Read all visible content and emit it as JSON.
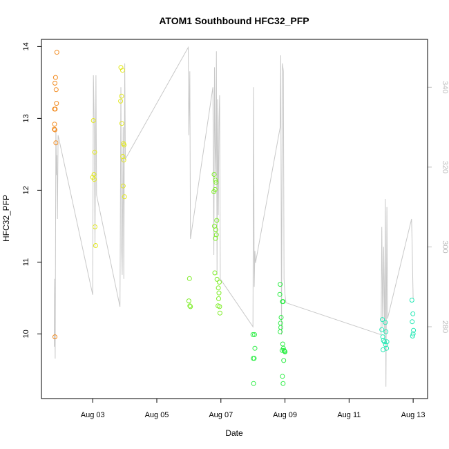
{
  "chart_data": {
    "type": "scatter",
    "title": "ATOM1 Southbound HFC32_PFP",
    "xlabel": "Date",
    "ylabel": "HFC32_PFP",
    "x_ticks": [
      "Aug 03",
      "Aug 05",
      "Aug 07",
      "Aug 09",
      "Aug 11",
      "Aug 13"
    ],
    "x_tick_values": [
      3,
      5,
      7,
      9,
      11,
      13
    ],
    "xlim": [
      1.4,
      13.45
    ],
    "y_ticks": [
      10,
      11,
      12,
      13,
      14
    ],
    "ylim": [
      9.1,
      14.1
    ],
    "y2_ticks": [
      280,
      300,
      320,
      340
    ],
    "y2lim": [
      262,
      352
    ],
    "series": [
      {
        "values": [
          {
            "x": 1.88,
            "y": 13.92,
            "color": "#f28a1e"
          },
          {
            "x": 1.84,
            "y": 13.57,
            "color": "#f28a1e"
          },
          {
            "x": 1.82,
            "y": 13.49,
            "color": "#f28a1e"
          },
          {
            "x": 1.86,
            "y": 13.4,
            "color": "#f28a1e"
          },
          {
            "x": 1.87,
            "y": 13.21,
            "color": "#f28a1e"
          },
          {
            "x": 1.81,
            "y": 13.13,
            "color": "#f28a1e"
          },
          {
            "x": 1.83,
            "y": 13.13,
            "color": "#f28a1e"
          },
          {
            "x": 1.81,
            "y": 12.92,
            "color": "#f28a1e"
          },
          {
            "x": 1.8,
            "y": 12.85,
            "color": "#f28a1e"
          },
          {
            "x": 1.82,
            "y": 12.84,
            "color": "#f28a1e"
          },
          {
            "x": 1.85,
            "y": 12.66,
            "color": "#f28a1e"
          },
          {
            "x": 1.82,
            "y": 9.96,
            "color": "#f28a1e"
          },
          {
            "x": 3.02,
            "y": 12.97,
            "color": "#e2e81f"
          },
          {
            "x": 3.06,
            "y": 12.53,
            "color": "#e2e81f"
          },
          {
            "x": 3.04,
            "y": 12.22,
            "color": "#e2e81f"
          },
          {
            "x": 3.0,
            "y": 12.18,
            "color": "#e2e81f"
          },
          {
            "x": 3.05,
            "y": 12.15,
            "color": "#e2e81f"
          },
          {
            "x": 3.07,
            "y": 11.49,
            "color": "#e2e81f"
          },
          {
            "x": 3.09,
            "y": 11.23,
            "color": "#e2e81f"
          },
          {
            "x": 3.88,
            "y": 13.71,
            "color": "#e2e81f"
          },
          {
            "x": 3.93,
            "y": 13.67,
            "color": "#e2e81f"
          },
          {
            "x": 3.9,
            "y": 13.31,
            "color": "#e2e81f"
          },
          {
            "x": 3.87,
            "y": 13.24,
            "color": "#e2e81f"
          },
          {
            "x": 3.91,
            "y": 12.93,
            "color": "#e2e81f"
          },
          {
            "x": 3.96,
            "y": 12.65,
            "color": "#e2e81f"
          },
          {
            "x": 3.98,
            "y": 12.63,
            "color": "#e2e81f"
          },
          {
            "x": 3.94,
            "y": 12.47,
            "color": "#e2e81f"
          },
          {
            "x": 3.97,
            "y": 12.42,
            "color": "#e2e81f"
          },
          {
            "x": 3.95,
            "y": 12.06,
            "color": "#e2e81f"
          },
          {
            "x": 3.99,
            "y": 11.91,
            "color": "#e2e81f"
          },
          {
            "x": 6.02,
            "y": 10.77,
            "color": "#7ded27"
          },
          {
            "x": 6.0,
            "y": 10.46,
            "color": "#7ded27"
          },
          {
            "x": 6.03,
            "y": 10.39,
            "color": "#7ded27"
          },
          {
            "x": 6.05,
            "y": 10.38,
            "color": "#7ded27"
          },
          {
            "x": 6.79,
            "y": 12.22,
            "color": "#7ded27"
          },
          {
            "x": 6.83,
            "y": 12.14,
            "color": "#7ded27"
          },
          {
            "x": 6.85,
            "y": 12.11,
            "color": "#7ded27"
          },
          {
            "x": 6.82,
            "y": 12.01,
            "color": "#7ded27"
          },
          {
            "x": 6.78,
            "y": 11.98,
            "color": "#7ded27"
          },
          {
            "x": 6.87,
            "y": 11.58,
            "color": "#7ded27"
          },
          {
            "x": 6.8,
            "y": 11.5,
            "color": "#7ded27"
          },
          {
            "x": 6.84,
            "y": 11.45,
            "color": "#7ded27"
          },
          {
            "x": 6.86,
            "y": 11.38,
            "color": "#7ded27"
          },
          {
            "x": 6.83,
            "y": 11.33,
            "color": "#7ded27"
          },
          {
            "x": 6.81,
            "y": 10.85,
            "color": "#7ded27"
          },
          {
            "x": 6.88,
            "y": 10.76,
            "color": "#7ded27"
          },
          {
            "x": 6.95,
            "y": 10.72,
            "color": "#7ded27"
          },
          {
            "x": 6.92,
            "y": 10.64,
            "color": "#7ded27"
          },
          {
            "x": 6.94,
            "y": 10.57,
            "color": "#7ded27"
          },
          {
            "x": 6.93,
            "y": 10.49,
            "color": "#7ded27"
          },
          {
            "x": 6.91,
            "y": 10.39,
            "color": "#7ded27"
          },
          {
            "x": 6.96,
            "y": 10.38,
            "color": "#7ded27"
          },
          {
            "x": 6.97,
            "y": 10.29,
            "color": "#7ded27"
          },
          {
            "x": 8.0,
            "y": 9.99,
            "color": "#2bee44"
          },
          {
            "x": 8.05,
            "y": 9.99,
            "color": "#2bee44"
          },
          {
            "x": 8.06,
            "y": 9.8,
            "color": "#2bee44"
          },
          {
            "x": 8.01,
            "y": 9.66,
            "color": "#2bee44"
          },
          {
            "x": 8.04,
            "y": 9.66,
            "color": "#2bee44"
          },
          {
            "x": 8.02,
            "y": 9.31,
            "color": "#2bee44"
          },
          {
            "x": 8.85,
            "y": 10.69,
            "color": "#2bee44"
          },
          {
            "x": 8.84,
            "y": 10.55,
            "color": "#2bee44"
          },
          {
            "x": 8.92,
            "y": 10.45,
            "color": "#2bee44"
          },
          {
            "x": 8.94,
            "y": 10.45,
            "color": "#2bee44"
          },
          {
            "x": 8.88,
            "y": 10.23,
            "color": "#2bee44"
          },
          {
            "x": 8.86,
            "y": 10.15,
            "color": "#2bee44"
          },
          {
            "x": 8.87,
            "y": 10.09,
            "color": "#2bee44"
          },
          {
            "x": 8.85,
            "y": 10.03,
            "color": "#2bee44"
          },
          {
            "x": 8.93,
            "y": 9.86,
            "color": "#2bee44"
          },
          {
            "x": 8.95,
            "y": 9.8,
            "color": "#2bee44"
          },
          {
            "x": 8.91,
            "y": 9.77,
            "color": "#2bee44"
          },
          {
            "x": 8.97,
            "y": 9.77,
            "color": "#2bee44"
          },
          {
            "x": 8.99,
            "y": 9.76,
            "color": "#2bee44"
          },
          {
            "x": 9.0,
            "y": 9.75,
            "color": "#2bee44"
          },
          {
            "x": 8.96,
            "y": 9.63,
            "color": "#2bee44"
          },
          {
            "x": 8.92,
            "y": 9.41,
            "color": "#2bee44"
          },
          {
            "x": 8.94,
            "y": 9.31,
            "color": "#2bee44"
          },
          {
            "x": 12.04,
            "y": 10.2,
            "color": "#22e8b4"
          },
          {
            "x": 12.02,
            "y": 10.06,
            "color": "#22e8b4"
          },
          {
            "x": 12.13,
            "y": 10.16,
            "color": "#22e8b4"
          },
          {
            "x": 12.15,
            "y": 10.03,
            "color": "#22e8b4"
          },
          {
            "x": 12.05,
            "y": 9.96,
            "color": "#22e8b4"
          },
          {
            "x": 12.07,
            "y": 9.91,
            "color": "#22e8b4"
          },
          {
            "x": 12.1,
            "y": 9.89,
            "color": "#22e8b4"
          },
          {
            "x": 12.18,
            "y": 9.89,
            "color": "#22e8b4"
          },
          {
            "x": 12.14,
            "y": 9.85,
            "color": "#22e8b4"
          },
          {
            "x": 12.17,
            "y": 9.8,
            "color": "#22e8b4"
          },
          {
            "x": 12.06,
            "y": 9.78,
            "color": "#22e8b4"
          },
          {
            "x": 12.96,
            "y": 10.47,
            "color": "#22e8b4"
          },
          {
            "x": 12.99,
            "y": 10.28,
            "color": "#22e8b4"
          },
          {
            "x": 12.97,
            "y": 10.17,
            "color": "#22e8b4"
          },
          {
            "x": 13.01,
            "y": 10.05,
            "color": "#22e8b4"
          },
          {
            "x": 13.0,
            "y": 10.0,
            "color": "#22e8b4"
          },
          {
            "x": 12.98,
            "y": 9.97,
            "color": "#22e8b4"
          }
        ]
      },
      {
        "axis": "right",
        "color": "#c8c8c8",
        "values": [
          {
            "x": 1.8,
            "y": 275
          },
          {
            "x": 1.81,
            "y": 292
          },
          {
            "x": 1.83,
            "y": 272
          },
          {
            "x": 1.85,
            "y": 330
          },
          {
            "x": 1.87,
            "y": 318
          },
          {
            "x": 1.88,
            "y": 323
          },
          {
            "x": 1.9,
            "y": 307
          },
          {
            "x": 1.92,
            "y": 328
          },
          {
            "x": 3.0,
            "y": 288
          },
          {
            "x": 3.02,
            "y": 343
          },
          {
            "x": 3.05,
            "y": 330
          },
          {
            "x": 3.07,
            "y": 300
          },
          {
            "x": 3.1,
            "y": 343
          },
          {
            "x": 3.12,
            "y": 313
          },
          {
            "x": 3.85,
            "y": 285
          },
          {
            "x": 3.88,
            "y": 340
          },
          {
            "x": 3.9,
            "y": 300
          },
          {
            "x": 3.92,
            "y": 293
          },
          {
            "x": 3.95,
            "y": 330
          },
          {
            "x": 3.97,
            "y": 292
          },
          {
            "x": 4.0,
            "y": 346
          },
          {
            "x": 4.02,
            "y": 322
          },
          {
            "x": 5.98,
            "y": 350
          },
          {
            "x": 6.0,
            "y": 328
          },
          {
            "x": 6.03,
            "y": 344
          },
          {
            "x": 6.05,
            "y": 302
          },
          {
            "x": 6.75,
            "y": 340
          },
          {
            "x": 6.78,
            "y": 298
          },
          {
            "x": 6.8,
            "y": 345
          },
          {
            "x": 6.82,
            "y": 325
          },
          {
            "x": 6.84,
            "y": 318
          },
          {
            "x": 6.86,
            "y": 349
          },
          {
            "x": 6.88,
            "y": 293
          },
          {
            "x": 6.9,
            "y": 337
          },
          {
            "x": 6.92,
            "y": 308
          },
          {
            "x": 6.94,
            "y": 331
          },
          {
            "x": 6.96,
            "y": 338
          },
          {
            "x": 6.98,
            "y": 292
          },
          {
            "x": 8.0,
            "y": 280
          },
          {
            "x": 8.02,
            "y": 340
          },
          {
            "x": 8.04,
            "y": 290
          },
          {
            "x": 8.06,
            "y": 299
          },
          {
            "x": 8.08,
            "y": 296
          },
          {
            "x": 8.85,
            "y": 330
          },
          {
            "x": 8.87,
            "y": 348
          },
          {
            "x": 8.89,
            "y": 278
          },
          {
            "x": 8.92,
            "y": 346
          },
          {
            "x": 8.95,
            "y": 344
          },
          {
            "x": 8.97,
            "y": 292
          },
          {
            "x": 9.0,
            "y": 288
          },
          {
            "x": 9.03,
            "y": 286
          },
          {
            "x": 12.0,
            "y": 278
          },
          {
            "x": 12.02,
            "y": 305
          },
          {
            "x": 12.05,
            "y": 280
          },
          {
            "x": 12.08,
            "y": 300
          },
          {
            "x": 12.11,
            "y": 278
          },
          {
            "x": 12.13,
            "y": 312
          },
          {
            "x": 12.15,
            "y": 265
          },
          {
            "x": 12.18,
            "y": 310
          },
          {
            "x": 12.2,
            "y": 282
          },
          {
            "x": 12.95,
            "y": 307
          },
          {
            "x": 12.97,
            "y": 300
          },
          {
            "x": 13.0,
            "y": 287
          }
        ]
      }
    ],
    "grid": false,
    "legend": "none"
  }
}
